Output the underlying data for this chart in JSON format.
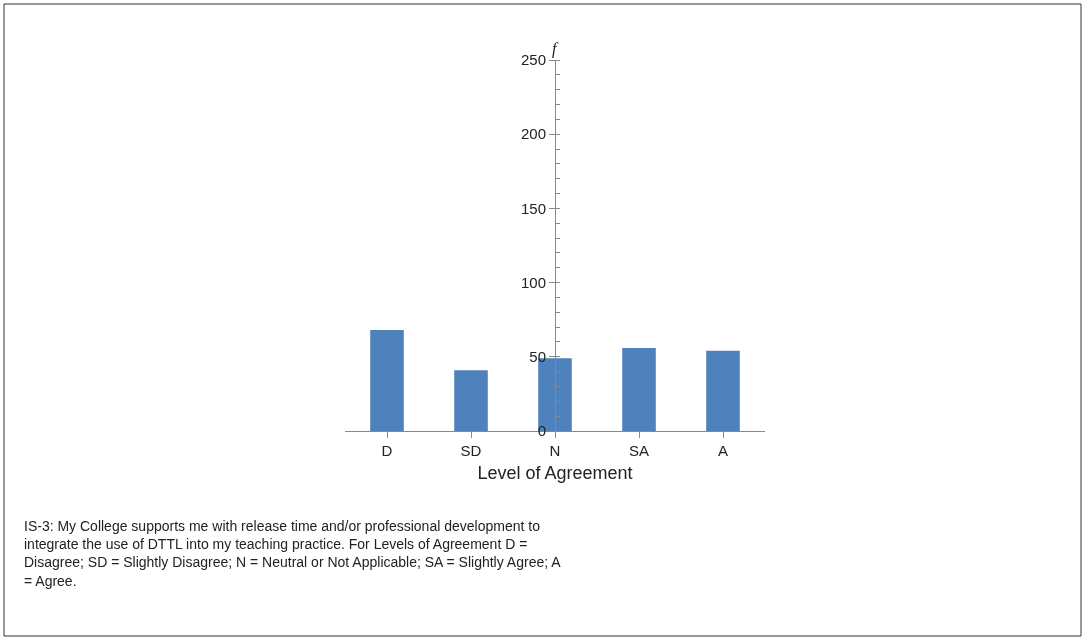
{
  "chart_data": {
    "type": "bar",
    "ylabel": "f",
    "xlabel": "Level of Agreement",
    "categories": [
      "D",
      "SD",
      "N",
      "SA",
      "A"
    ],
    "values": [
      68,
      41,
      49,
      56,
      54
    ],
    "color": "#4f81bd",
    "ylim": [
      0,
      250
    ],
    "yticks": [
      0,
      50,
      100,
      150,
      200,
      250
    ],
    "legend": false,
    "annotations": [
      "IS-3: My College supports me with release time and/or professional development to integrate the use of DTTL into my teaching practice. For Levels of Agreement D = Disagree; SD = Slightly Disagree; N = Neutral or Not Applicable; SA = Slightly Agree; A = Agree."
    ]
  }
}
